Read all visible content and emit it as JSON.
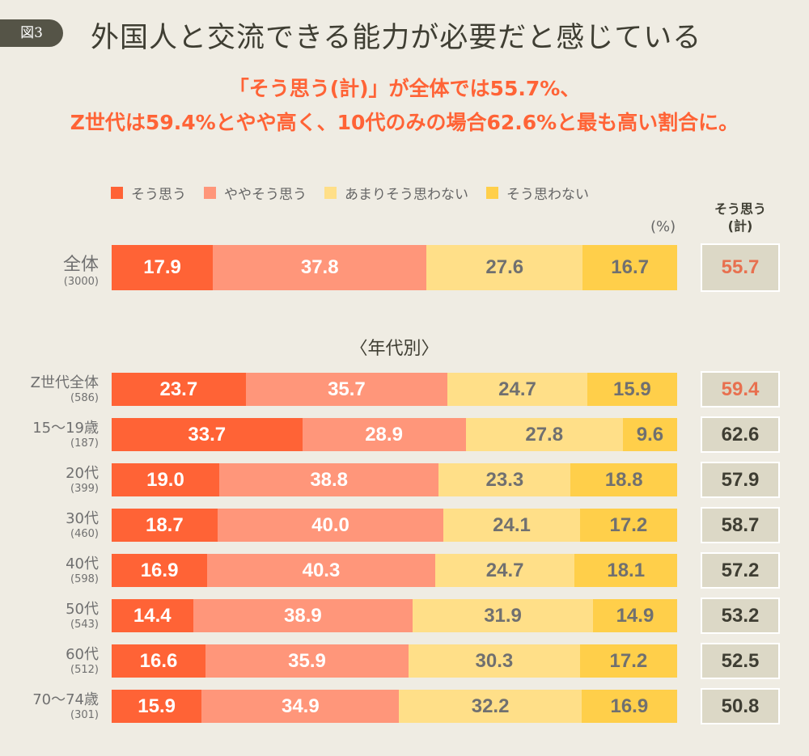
{
  "header": {
    "figure_label": "図3",
    "title": "外国人と交流できる能力が必要だと感じている",
    "subtitle_line1": "「そう思う(計)」が全体では55.7%、",
    "subtitle_line2": "Z世代は59.4%とやや高く、10代のみの場合62.6%と最も高い割合に。"
  },
  "chart_data": {
    "type": "bar",
    "orientation": "horizontal",
    "stacked": true,
    "unit": "(%)",
    "legend_placement": "top",
    "colors": [
      "#ff6336",
      "#ff967a",
      "#ffdf88",
      "#ffcf4a"
    ],
    "series_names": [
      "そう思う",
      "ややそう思う",
      "あまりそう思わない",
      "そう思わない"
    ],
    "summary_header": "そう思う(計)",
    "summary_highlight_color": "#e8704f",
    "section_label": "〈年代別〉",
    "overall": {
      "label": "全体",
      "n": "(3000)",
      "values": [
        17.9,
        37.8,
        27.6,
        16.7
      ],
      "total": "55.7",
      "highlight": true
    },
    "rows": [
      {
        "label": "Z世代全体",
        "n": "(586)",
        "values": [
          23.7,
          35.7,
          24.7,
          15.9
        ],
        "total": "59.4",
        "highlight": true
      },
      {
        "label": "15〜19歳",
        "n": "(187)",
        "values": [
          33.7,
          28.9,
          27.8,
          9.6
        ],
        "total": "62.6",
        "highlight": false
      },
      {
        "label": "20代",
        "n": "(399)",
        "values": [
          19.0,
          38.8,
          23.3,
          18.8
        ],
        "total": "57.9",
        "highlight": false
      },
      {
        "label": "30代",
        "n": "(460)",
        "values": [
          18.7,
          40.0,
          24.1,
          17.2
        ],
        "total": "58.7",
        "highlight": false
      },
      {
        "label": "40代",
        "n": "(598)",
        "values": [
          16.9,
          40.3,
          24.7,
          18.1
        ],
        "total": "57.2",
        "highlight": false
      },
      {
        "label": "50代",
        "n": "(543)",
        "values": [
          14.4,
          38.9,
          31.9,
          14.9
        ],
        "total": "53.2",
        "highlight": false
      },
      {
        "label": "60代",
        "n": "(512)",
        "values": [
          16.6,
          35.9,
          30.3,
          17.2
        ],
        "total": "52.5",
        "highlight": false
      },
      {
        "label": "70〜74歳",
        "n": "(301)",
        "values": [
          15.9,
          34.9,
          32.2,
          16.9
        ],
        "total": "50.8",
        "highlight": false
      }
    ]
  }
}
